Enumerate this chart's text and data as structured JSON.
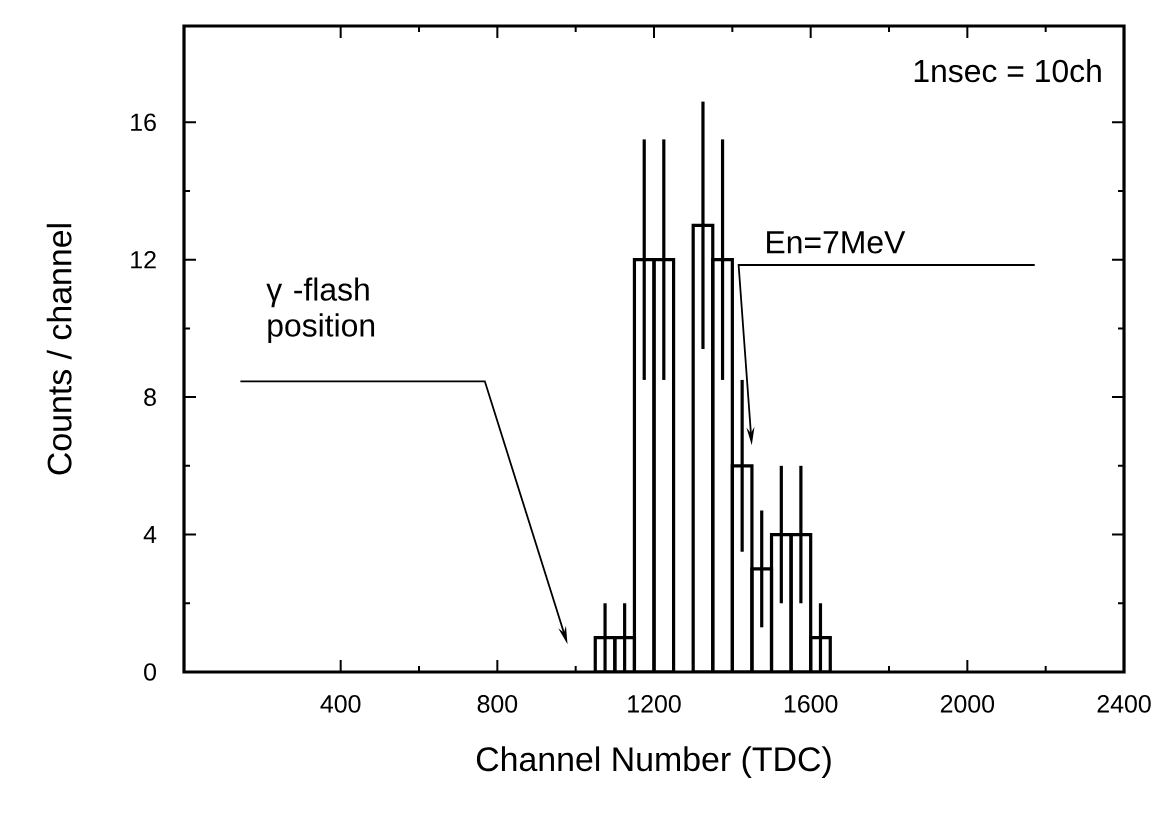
{
  "chart_data": {
    "type": "histogram",
    "xlabel": "Channel Number (TDC)",
    "ylabel": "Counts / channel",
    "bins": [
      1050,
      1100,
      1150,
      1200,
      1250,
      1300,
      1350,
      1400,
      1450,
      1500,
      1550,
      1600,
      1650
    ],
    "values": [
      1,
      1,
      12,
      12,
      null,
      13,
      12,
      6,
      3,
      4,
      4,
      1
    ],
    "errors": [
      1,
      1,
      3.5,
      3.5,
      null,
      3.6,
      3.5,
      2.5,
      1.7,
      2,
      2,
      1
    ],
    "color": "#000000",
    "xlim": [
      0,
      2400
    ],
    "ylim": [
      0,
      18.8
    ],
    "xticks": [
      400,
      800,
      1200,
      1600,
      2000,
      2400
    ],
    "yticks": [
      0,
      4,
      8,
      12,
      16
    ],
    "annotations": [
      "1nsec = 10ch",
      "γ -flash position",
      "En=7MeV"
    ]
  }
}
